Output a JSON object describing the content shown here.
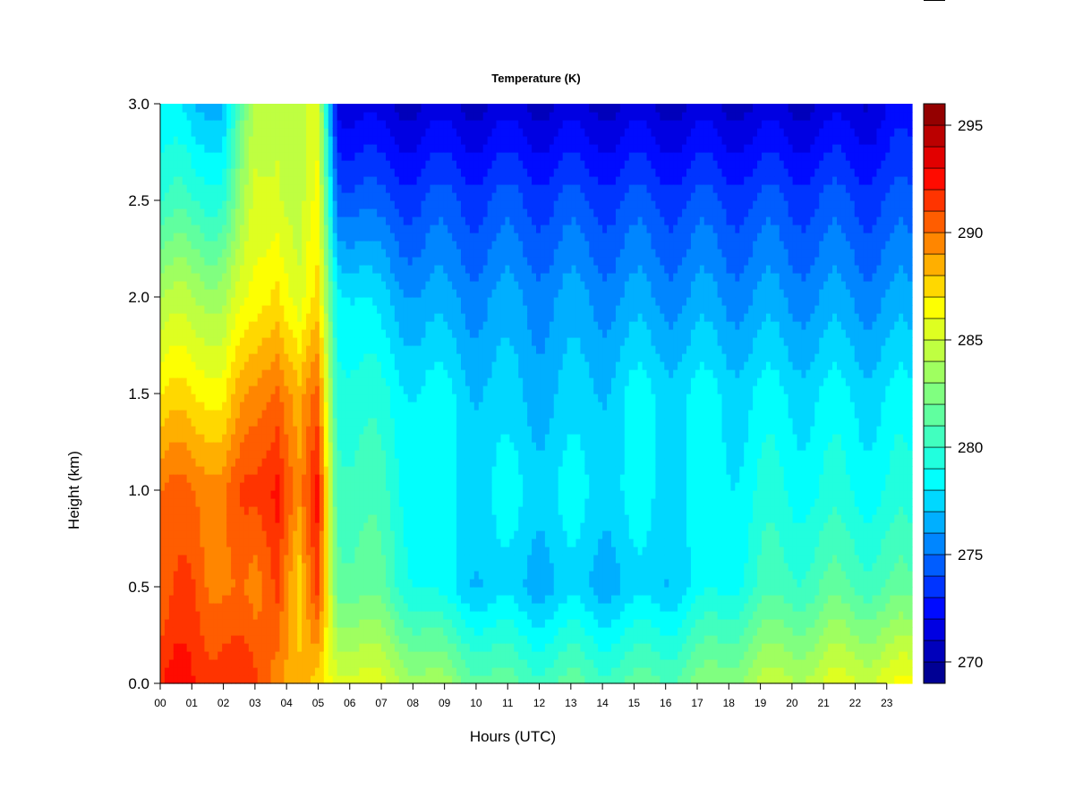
{
  "chart_data": {
    "type": "heatmap",
    "title": "Temperature (K)",
    "xlabel": "Hours (UTC)",
    "ylabel": "Height (km)",
    "xlim": [
      0,
      23.8
    ],
    "ylim": [
      0,
      3.0
    ],
    "x_ticks": [
      "00",
      "01",
      "02",
      "03",
      "04",
      "05",
      "06",
      "07",
      "08",
      "09",
      "10",
      "11",
      "12",
      "13",
      "14",
      "15",
      "16",
      "17",
      "18",
      "19",
      "20",
      "21",
      "22",
      "23"
    ],
    "y_ticks": [
      "0.0",
      "0.5",
      "1.0",
      "1.5",
      "2.0",
      "2.5",
      "3.0"
    ],
    "colorbar": {
      "range": [
        269,
        296
      ],
      "ticks": [
        "270",
        "275",
        "280",
        "285",
        "290",
        "295"
      ],
      "levels": 27
    },
    "profiles": [
      {
        "hour": 0.0,
        "t0": 292,
        "t05": 290,
        "t10": 290,
        "t15": 287,
        "t20": 284,
        "t25": 280,
        "t30": 278
      },
      {
        "hour": 1.0,
        "t0": 292,
        "t05": 291,
        "t10": 290,
        "t15": 287,
        "t20": 284,
        "t25": 280,
        "t30": 277
      },
      {
        "hour": 2.0,
        "t0": 292,
        "t05": 290,
        "t10": 290,
        "t15": 287,
        "t20": 284,
        "t25": 280,
        "t30": 277
      },
      {
        "hour": 3.0,
        "t0": 291,
        "t05": 289,
        "t10": 291,
        "t15": 289,
        "t20": 286,
        "t25": 285,
        "t30": 284
      },
      {
        "hour": 3.7,
        "t0": 290,
        "t05": 292,
        "t10": 293,
        "t15": 291,
        "t20": 288,
        "t25": 286,
        "t30": 285
      },
      {
        "hour": 4.4,
        "t0": 288,
        "t05": 287,
        "t10": 289,
        "t15": 288,
        "t20": 285,
        "t25": 284,
        "t30": 284
      },
      {
        "hour": 5.0,
        "t0": 287,
        "t05": 291,
        "t10": 292,
        "t15": 290,
        "t20": 287,
        "t25": 286,
        "t30": 285
      },
      {
        "hour": 5.6,
        "t0": 286,
        "t05": 282,
        "t10": 281,
        "t15": 280,
        "t20": 279,
        "t25": 275,
        "t30": 272
      },
      {
        "hour": 7.0,
        "t0": 285,
        "t05": 281,
        "t10": 280,
        "t15": 279,
        "t20": 277,
        "t25": 274,
        "t30": 271
      },
      {
        "hour": 9.0,
        "t0": 283,
        "t05": 278,
        "t10": 278,
        "t15": 278,
        "t20": 276,
        "t25": 274,
        "t30": 271
      },
      {
        "hour": 11.0,
        "t0": 281,
        "t05": 277,
        "t10": 278,
        "t15": 277,
        "t20": 276,
        "t25": 274,
        "t30": 271
      },
      {
        "hour": 13.0,
        "t0": 281,
        "t05": 277,
        "t10": 278,
        "t15": 277,
        "t20": 276,
        "t25": 274,
        "t30": 271
      },
      {
        "hour": 15.0,
        "t0": 281,
        "t05": 277,
        "t10": 278,
        "t15": 278,
        "t20": 276,
        "t25": 274,
        "t30": 271
      },
      {
        "hour": 17.0,
        "t0": 282,
        "t05": 278,
        "t10": 278,
        "t15": 278,
        "t20": 276,
        "t25": 274,
        "t30": 271
      },
      {
        "hour": 19.0,
        "t0": 284,
        "t05": 280,
        "t10": 279,
        "t15": 278,
        "t20": 276,
        "t25": 274,
        "t30": 271
      },
      {
        "hour": 21.0,
        "t0": 285,
        "t05": 281,
        "t10": 279,
        "t15": 278,
        "t20": 276,
        "t25": 274,
        "t30": 271
      },
      {
        "hour": 23.8,
        "t0": 286,
        "t05": 281,
        "t10": 279,
        "t15": 278,
        "t20": 276,
        "t25": 274,
        "t30": 272
      }
    ]
  }
}
